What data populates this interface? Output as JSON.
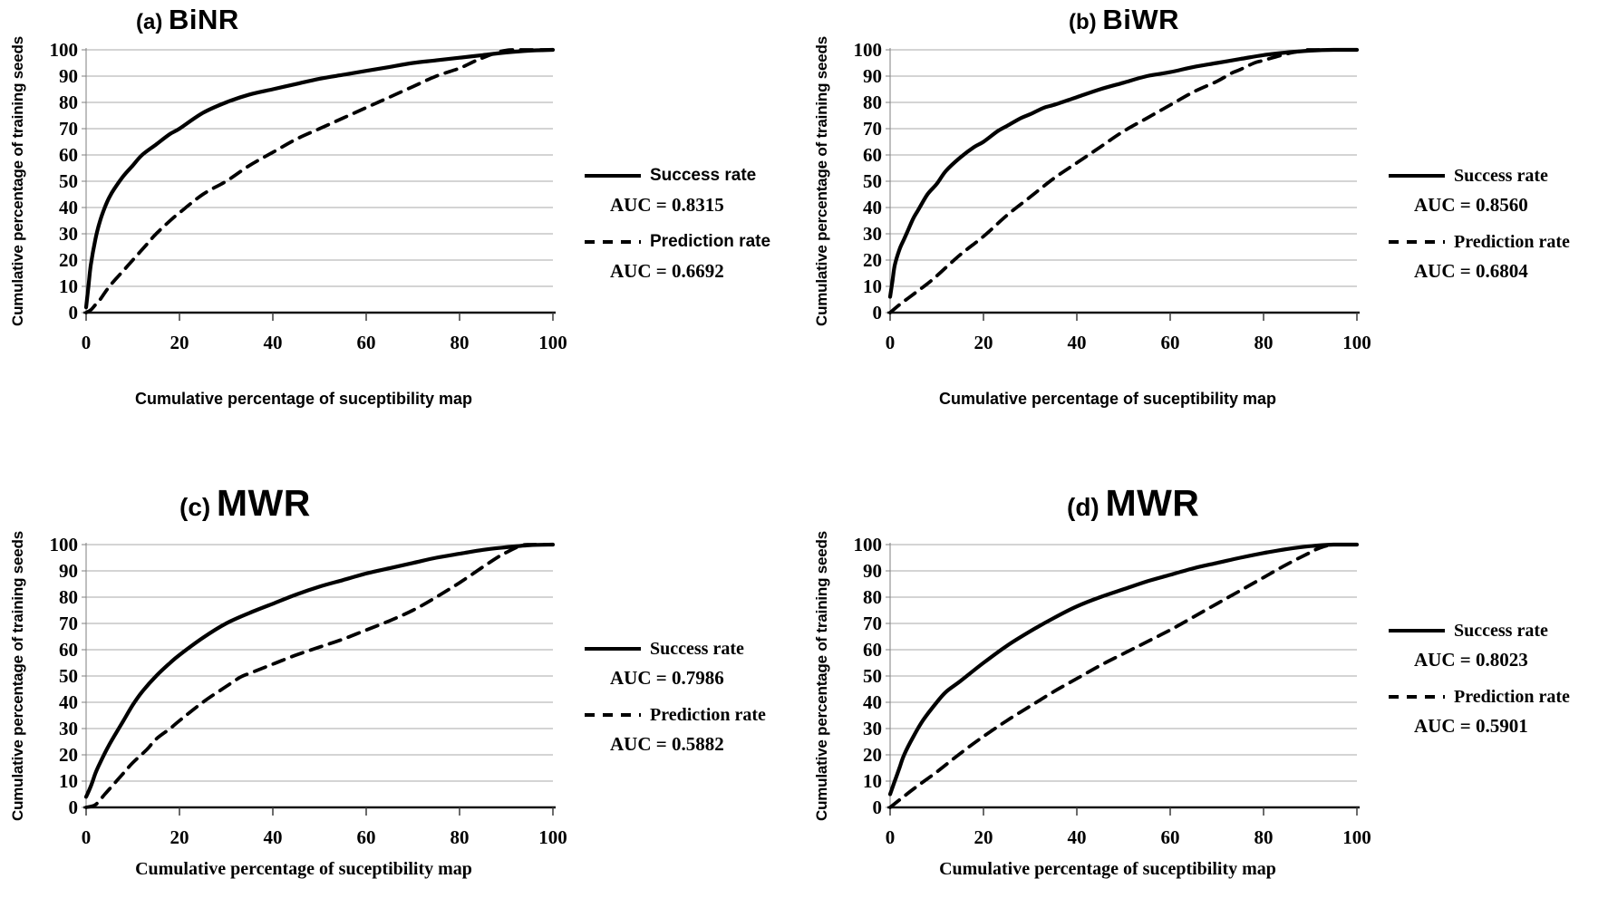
{
  "figure": {
    "description": "Success rate and prediction rate cumulative curves for four susceptibility models"
  },
  "chart_data": [
    {
      "id": "a",
      "type": "line",
      "title_prefix": "(a)",
      "title_main": "BiNR",
      "xlabel": "Cumulative percentage of suceptibility map",
      "ylabel": "Cumulative percentage of training seeds",
      "xlim": [
        0,
        100
      ],
      "ylim": [
        0,
        100
      ],
      "xticks": [
        0,
        20,
        40,
        60,
        80,
        100
      ],
      "yticks": [
        0,
        10,
        20,
        30,
        40,
        50,
        60,
        70,
        80,
        90,
        100
      ],
      "grid": "horizontal",
      "legend_position": "right",
      "series": [
        {
          "name": "Success rate",
          "auc_label": "AUC = 0.8315",
          "auc": 0.8315,
          "line_style": "solid",
          "points": [
            [
              0,
              2
            ],
            [
              0.5,
              10
            ],
            [
              1,
              18
            ],
            [
              2,
              28
            ],
            [
              3,
              35
            ],
            [
              4,
              40
            ],
            [
              5,
              44
            ],
            [
              6,
              47
            ],
            [
              8,
              52
            ],
            [
              10,
              56
            ],
            [
              12,
              60
            ],
            [
              15,
              64
            ],
            [
              18,
              68
            ],
            [
              20,
              70
            ],
            [
              25,
              76
            ],
            [
              30,
              80
            ],
            [
              35,
              83
            ],
            [
              40,
              85
            ],
            [
              45,
              87
            ],
            [
              50,
              89
            ],
            [
              55,
              90.5
            ],
            [
              60,
              92
            ],
            [
              65,
              93.5
            ],
            [
              70,
              95
            ],
            [
              75,
              96
            ],
            [
              80,
              97
            ],
            [
              85,
              98
            ],
            [
              90,
              99
            ],
            [
              95,
              99.7
            ],
            [
              100,
              100
            ]
          ]
        },
        {
          "name": "Prediction rate",
          "auc_label": "AUC = 0.6692",
          "auc": 0.6692,
          "line_style": "dashed",
          "points": [
            [
              0,
              0
            ],
            [
              1,
              1
            ],
            [
              2,
              3
            ],
            [
              3,
              5
            ],
            [
              5,
              10
            ],
            [
              8,
              16
            ],
            [
              10,
              20
            ],
            [
              13,
              26
            ],
            [
              15,
              30
            ],
            [
              18,
              35
            ],
            [
              20,
              38
            ],
            [
              25,
              45
            ],
            [
              30,
              50
            ],
            [
              35,
              56
            ],
            [
              40,
              61
            ],
            [
              45,
              66
            ],
            [
              50,
              70
            ],
            [
              55,
              74
            ],
            [
              60,
              78
            ],
            [
              65,
              82
            ],
            [
              70,
              86
            ],
            [
              75,
              90
            ],
            [
              80,
              93
            ],
            [
              83,
              95.5
            ],
            [
              85,
              97
            ],
            [
              88,
              99
            ],
            [
              90,
              99.8
            ],
            [
              92,
              100
            ],
            [
              100,
              100
            ]
          ]
        }
      ]
    },
    {
      "id": "b",
      "type": "line",
      "title_prefix": "(b)",
      "title_main": "BiWR",
      "xlabel": "Cumulative percentage of suceptibility map",
      "ylabel": "Cumulative percentage of training seeds",
      "xlim": [
        0,
        100
      ],
      "ylim": [
        0,
        100
      ],
      "xticks": [
        0,
        20,
        40,
        60,
        80,
        100
      ],
      "yticks": [
        0,
        10,
        20,
        30,
        40,
        50,
        60,
        70,
        80,
        90,
        100
      ],
      "grid": "horizontal",
      "legend_position": "right",
      "series": [
        {
          "name": "Success rate",
          "auc_label": "AUC = 0.8560",
          "auc": 0.856,
          "line_style": "solid",
          "points": [
            [
              0,
              6
            ],
            [
              0.5,
              12
            ],
            [
              1,
              18
            ],
            [
              2,
              24
            ],
            [
              3,
              28
            ],
            [
              4,
              32
            ],
            [
              5,
              36
            ],
            [
              6,
              39
            ],
            [
              8,
              45
            ],
            [
              10,
              49
            ],
            [
              12,
              54
            ],
            [
              15,
              59
            ],
            [
              18,
              63
            ],
            [
              20,
              65
            ],
            [
              23,
              69
            ],
            [
              25,
              71
            ],
            [
              28,
              74
            ],
            [
              30,
              75.5
            ],
            [
              33,
              78
            ],
            [
              35,
              79
            ],
            [
              40,
              82
            ],
            [
              45,
              85
            ],
            [
              50,
              87.5
            ],
            [
              55,
              90
            ],
            [
              60,
              91.5
            ],
            [
              65,
              93.5
            ],
            [
              70,
              95
            ],
            [
              75,
              96.5
            ],
            [
              80,
              98
            ],
            [
              85,
              99
            ],
            [
              90,
              99.7
            ],
            [
              95,
              100
            ],
            [
              100,
              100
            ]
          ]
        },
        {
          "name": "Prediction rate",
          "auc_label": "AUC = 0.6804",
          "auc": 0.6804,
          "line_style": "dashed",
          "points": [
            [
              0,
              0
            ],
            [
              2,
              3
            ],
            [
              5,
              7
            ],
            [
              8,
              11
            ],
            [
              10,
              14
            ],
            [
              15,
              22
            ],
            [
              20,
              29
            ],
            [
              25,
              37
            ],
            [
              30,
              44
            ],
            [
              35,
              51
            ],
            [
              40,
              57
            ],
            [
              45,
              63
            ],
            [
              50,
              69
            ],
            [
              55,
              74
            ],
            [
              60,
              79
            ],
            [
              65,
              84
            ],
            [
              70,
              88
            ],
            [
              73,
              91
            ],
            [
              75,
              92.5
            ],
            [
              78,
              95
            ],
            [
              80,
              96
            ],
            [
              85,
              98.5
            ],
            [
              88,
              99.5
            ],
            [
              90,
              100
            ],
            [
              100,
              100
            ]
          ]
        }
      ]
    },
    {
      "id": "c",
      "type": "line",
      "title_prefix": "(c)",
      "title_main": "MWR",
      "xlabel": "Cumulative percentage of suceptibility map",
      "ylabel": "Cumulative percentage of training seeds",
      "xlim": [
        0,
        100
      ],
      "ylim": [
        0,
        100
      ],
      "xticks": [
        0,
        20,
        40,
        60,
        80,
        100
      ],
      "yticks": [
        0,
        10,
        20,
        30,
        40,
        50,
        60,
        70,
        80,
        90,
        100
      ],
      "grid": "horizontal",
      "legend_position": "right",
      "series": [
        {
          "name": "Success rate",
          "auc_label": "AUC = 0.7986",
          "auc": 0.7986,
          "line_style": "solid",
          "points": [
            [
              0,
              4
            ],
            [
              1,
              8
            ],
            [
              2,
              13
            ],
            [
              3,
              17
            ],
            [
              5,
              24
            ],
            [
              7,
              30
            ],
            [
              8,
              33
            ],
            [
              10,
              39
            ],
            [
              12,
              44
            ],
            [
              15,
              50
            ],
            [
              18,
              55
            ],
            [
              20,
              58
            ],
            [
              25,
              64.5
            ],
            [
              30,
              70
            ],
            [
              35,
              74
            ],
            [
              40,
              77.5
            ],
            [
              45,
              81
            ],
            [
              50,
              84
            ],
            [
              55,
              86.5
            ],
            [
              60,
              89
            ],
            [
              65,
              91
            ],
            [
              70,
              93
            ],
            [
              75,
              95
            ],
            [
              80,
              96.5
            ],
            [
              85,
              98
            ],
            [
              90,
              99
            ],
            [
              95,
              99.8
            ],
            [
              100,
              100
            ]
          ]
        },
        {
          "name": "Prediction rate",
          "auc_label": "AUC = 0.5882",
          "auc": 0.5882,
          "line_style": "dashed",
          "points": [
            [
              0,
              0
            ],
            [
              2,
              1
            ],
            [
              4,
              5
            ],
            [
              5,
              7
            ],
            [
              8,
              13
            ],
            [
              10,
              17
            ],
            [
              13,
              22
            ],
            [
              15,
              26
            ],
            [
              18,
              30
            ],
            [
              20,
              33
            ],
            [
              25,
              40
            ],
            [
              30,
              46
            ],
            [
              33,
              49.5
            ],
            [
              35,
              51
            ],
            [
              40,
              54.5
            ],
            [
              45,
              58
            ],
            [
              50,
              61
            ],
            [
              55,
              64
            ],
            [
              60,
              67.5
            ],
            [
              65,
              71
            ],
            [
              70,
              75
            ],
            [
              75,
              80
            ],
            [
              80,
              85.5
            ],
            [
              85,
              91.5
            ],
            [
              88,
              95
            ],
            [
              90,
              97
            ],
            [
              93,
              99.5
            ],
            [
              95,
              100
            ],
            [
              100,
              100
            ]
          ]
        }
      ]
    },
    {
      "id": "d",
      "type": "line",
      "title_prefix": "(d)",
      "title_main": "MWR",
      "xlabel": "Cumulative percentage of suceptibility map",
      "ylabel": "Cumulative percentage of training seeds",
      "xlim": [
        0,
        100
      ],
      "ylim": [
        0,
        100
      ],
      "xticks": [
        0,
        20,
        40,
        60,
        80,
        100
      ],
      "yticks": [
        0,
        10,
        20,
        30,
        40,
        50,
        60,
        70,
        80,
        90,
        100
      ],
      "grid": "horizontal",
      "legend_position": "right",
      "series": [
        {
          "name": "Success rate",
          "auc_label": "AUC = 0.8023",
          "auc": 0.8023,
          "line_style": "solid",
          "points": [
            [
              0,
              5
            ],
            [
              1,
              10
            ],
            [
              2,
              15
            ],
            [
              3,
              20
            ],
            [
              5,
              27
            ],
            [
              7,
              33
            ],
            [
              10,
              40
            ],
            [
              12,
              44
            ],
            [
              15,
              48
            ],
            [
              20,
              55
            ],
            [
              25,
              61.5
            ],
            [
              30,
              67
            ],
            [
              35,
              72
            ],
            [
              40,
              76.5
            ],
            [
              45,
              80
            ],
            [
              50,
              83
            ],
            [
              55,
              86
            ],
            [
              60,
              88.5
            ],
            [
              65,
              91
            ],
            [
              70,
              93
            ],
            [
              75,
              95
            ],
            [
              80,
              96.8
            ],
            [
              85,
              98.3
            ],
            [
              90,
              99.4
            ],
            [
              95,
              100
            ],
            [
              100,
              100
            ]
          ]
        },
        {
          "name": "Prediction rate",
          "auc_label": "AUC = 0.5901",
          "auc": 0.5901,
          "line_style": "dashed",
          "points": [
            [
              0,
              0
            ],
            [
              5,
              7
            ],
            [
              10,
              13.5
            ],
            [
              15,
              20.5
            ],
            [
              20,
              27
            ],
            [
              25,
              33
            ],
            [
              30,
              38.5
            ],
            [
              35,
              44
            ],
            [
              40,
              49
            ],
            [
              45,
              54
            ],
            [
              50,
              58.5
            ],
            [
              55,
              63
            ],
            [
              60,
              67.5
            ],
            [
              65,
              72.5
            ],
            [
              70,
              77.5
            ],
            [
              75,
              82.5
            ],
            [
              80,
              87.5
            ],
            [
              85,
              92.5
            ],
            [
              90,
              97
            ],
            [
              92,
              98.7
            ],
            [
              95,
              100
            ],
            [
              100,
              100
            ]
          ]
        }
      ]
    }
  ]
}
